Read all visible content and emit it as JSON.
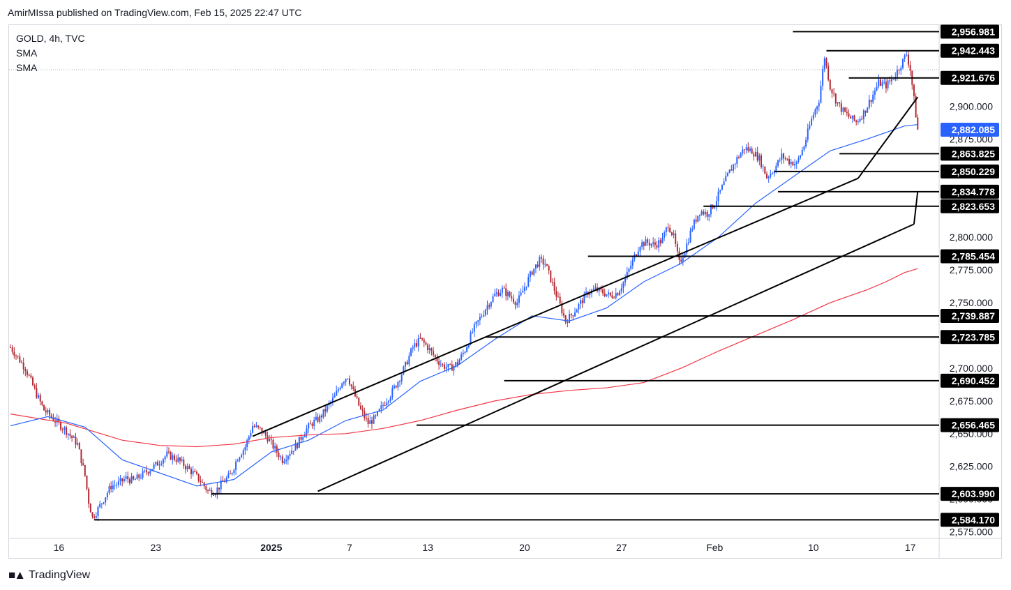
{
  "header": {
    "published_text": "AmirMIssa published on TradingView.com, Feb 15, 2025 22:47 UTC"
  },
  "legend": {
    "symbol": "GOLD, 4h, TVC",
    "indicators": [
      "SMA",
      "SMA"
    ]
  },
  "footer": {
    "brand": "TradingView"
  },
  "colors": {
    "up_candle": "#2962ff",
    "down_candle": "#b22833",
    "sma_fast": "#2962ff",
    "sma_slow": "#f23645",
    "level_label_bg": "#000000",
    "last_price_bg": "#2962ff",
    "trendlines": "#000000"
  },
  "chart_data": {
    "type": "candlestick",
    "symbol": "GOLD",
    "timeframe": "4h",
    "x_tick_labels": [
      "16",
      "23",
      "2025",
      "7",
      "13",
      "20",
      "27",
      "Feb",
      "10",
      "17"
    ],
    "y_tick_labels": [
      "2,900.000",
      "2,875.000",
      "2,850.000",
      "2,825.000",
      "2,800.000",
      "2,775.000",
      "2,750.000",
      "2,725.000",
      "2,700.000",
      "2,675.000",
      "2,650.000",
      "2,625.000",
      "2,600.000",
      "2,575.000"
    ],
    "ylim": [
      2570,
      2962
    ],
    "last_price": "2,882.085",
    "horizontal_levels": [
      "2,956.981",
      "2,942.443",
      "2,921.676",
      "2,863.825",
      "2,850.229",
      "2,834.778",
      "2,823.653",
      "2,785.454",
      "2,739.887",
      "2,723.785",
      "2,690.452",
      "2,656.465",
      "2,603.990",
      "2,584.170"
    ],
    "close_path": [
      [
        0,
        2716
      ],
      [
        8,
        2700
      ],
      [
        14,
        2680
      ],
      [
        18,
        2668
      ],
      [
        24,
        2660
      ],
      [
        30,
        2652
      ],
      [
        36,
        2642
      ],
      [
        40,
        2618
      ],
      [
        42,
        2598
      ],
      [
        44,
        2586
      ],
      [
        46,
        2590
      ],
      [
        50,
        2600
      ],
      [
        54,
        2610
      ],
      [
        58,
        2612
      ],
      [
        62,
        2616
      ],
      [
        66,
        2614
      ],
      [
        72,
        2620
      ],
      [
        78,
        2626
      ],
      [
        84,
        2634
      ],
      [
        90,
        2630
      ],
      [
        94,
        2625
      ],
      [
        98,
        2620
      ],
      [
        102,
        2614
      ],
      [
        106,
        2606
      ],
      [
        110,
        2606
      ],
      [
        114,
        2613
      ],
      [
        118,
        2618
      ],
      [
        122,
        2632
      ],
      [
        126,
        2640
      ],
      [
        130,
        2656
      ],
      [
        134,
        2653
      ],
      [
        138,
        2647
      ],
      [
        142,
        2638
      ],
      [
        146,
        2630
      ],
      [
        150,
        2636
      ],
      [
        154,
        2642
      ],
      [
        158,
        2652
      ],
      [
        162,
        2658
      ],
      [
        166,
        2662
      ],
      [
        170,
        2670
      ],
      [
        174,
        2678
      ],
      [
        178,
        2690
      ],
      [
        181,
        2694
      ],
      [
        184,
        2682
      ],
      [
        188,
        2668
      ],
      [
        192,
        2658
      ],
      [
        196,
        2662
      ],
      [
        200,
        2672
      ],
      [
        204,
        2680
      ],
      [
        208,
        2690
      ],
      [
        212,
        2702
      ],
      [
        216,
        2716
      ],
      [
        220,
        2722
      ],
      [
        224,
        2716
      ],
      [
        228,
        2708
      ],
      [
        232,
        2702
      ],
      [
        236,
        2700
      ],
      [
        240,
        2704
      ],
      [
        244,
        2714
      ],
      [
        248,
        2728
      ],
      [
        252,
        2738
      ],
      [
        256,
        2748
      ],
      [
        260,
        2756
      ],
      [
        264,
        2760
      ],
      [
        268,
        2755
      ],
      [
        272,
        2750
      ],
      [
        276,
        2762
      ],
      [
        280,
        2774
      ],
      [
        284,
        2782
      ],
      [
        287,
        2780
      ],
      [
        290,
        2768
      ],
      [
        294,
        2752
      ],
      [
        298,
        2736
      ],
      [
        302,
        2742
      ],
      [
        306,
        2750
      ],
      [
        310,
        2758
      ],
      [
        314,
        2760
      ],
      [
        318,
        2758
      ],
      [
        322,
        2755
      ],
      [
        326,
        2758
      ],
      [
        330,
        2768
      ],
      [
        334,
        2782
      ],
      [
        338,
        2795
      ],
      [
        342,
        2796
      ],
      [
        346,
        2794
      ],
      [
        350,
        2798
      ],
      [
        353,
        2810
      ],
      [
        356,
        2800
      ],
      [
        359,
        2780
      ],
      [
        362,
        2790
      ],
      [
        366,
        2808
      ],
      [
        370,
        2820
      ],
      [
        374,
        2818
      ],
      [
        378,
        2826
      ],
      [
        382,
        2838
      ],
      [
        386,
        2850
      ],
      [
        390,
        2860
      ],
      [
        394,
        2868
      ],
      [
        398,
        2866
      ],
      [
        402,
        2860
      ],
      [
        406,
        2846
      ],
      [
        410,
        2852
      ],
      [
        414,
        2862
      ],
      [
        418,
        2858
      ],
      [
        422,
        2856
      ],
      [
        426,
        2870
      ],
      [
        430,
        2890
      ],
      [
        434,
        2905
      ],
      [
        437,
        2938
      ],
      [
        440,
        2915
      ],
      [
        443,
        2905
      ],
      [
        446,
        2898
      ],
      [
        450,
        2892
      ],
      [
        454,
        2888
      ],
      [
        458,
        2895
      ],
      [
        462,
        2906
      ],
      [
        466,
        2918
      ],
      [
        470,
        2916
      ],
      [
        474,
        2922
      ],
      [
        478,
        2932
      ],
      [
        481,
        2940
      ],
      [
        483,
        2928
      ],
      [
        485,
        2905
      ],
      [
        487,
        2882
      ]
    ],
    "candle_count": 488,
    "sma_fast_path": [
      [
        0,
        2656
      ],
      [
        20,
        2663
      ],
      [
        40,
        2655
      ],
      [
        60,
        2630
      ],
      [
        80,
        2620
      ],
      [
        100,
        2610
      ],
      [
        120,
        2615
      ],
      [
        140,
        2636
      ],
      [
        160,
        2645
      ],
      [
        180,
        2660
      ],
      [
        200,
        2668
      ],
      [
        220,
        2690
      ],
      [
        240,
        2702
      ],
      [
        260,
        2722
      ],
      [
        280,
        2740
      ],
      [
        300,
        2736
      ],
      [
        320,
        2746
      ],
      [
        340,
        2766
      ],
      [
        360,
        2780
      ],
      [
        380,
        2800
      ],
      [
        400,
        2826
      ],
      [
        420,
        2846
      ],
      [
        440,
        2866
      ],
      [
        460,
        2875
      ],
      [
        480,
        2885
      ],
      [
        487,
        2886
      ]
    ],
    "sma_slow_path": [
      [
        0,
        2665
      ],
      [
        30,
        2658
      ],
      [
        60,
        2645
      ],
      [
        80,
        2641
      ],
      [
        100,
        2640
      ],
      [
        120,
        2642
      ],
      [
        140,
        2647
      ],
      [
        160,
        2649
      ],
      [
        180,
        2650
      ],
      [
        200,
        2654
      ],
      [
        220,
        2660
      ],
      [
        240,
        2668
      ],
      [
        260,
        2675
      ],
      [
        280,
        2680
      ],
      [
        300,
        2683
      ],
      [
        320,
        2685
      ],
      [
        340,
        2689
      ],
      [
        360,
        2700
      ],
      [
        380,
        2713
      ],
      [
        400,
        2725
      ],
      [
        420,
        2737
      ],
      [
        440,
        2750
      ],
      [
        460,
        2760
      ],
      [
        470,
        2766
      ],
      [
        480,
        2773
      ],
      [
        487,
        2776
      ]
    ],
    "trendlines": [
      {
        "from": [
          130,
          2648
        ],
        "to": [
          455,
          2845
        ]
      },
      {
        "from": [
          165,
          2606
        ],
        "to": [
          485,
          2810
        ]
      }
    ],
    "trendline_extensions": [
      {
        "from": [
          455,
          2845
        ],
        "to": [
          487,
          2907
        ]
      },
      {
        "from": [
          485,
          2810
        ],
        "to": [
          487,
          2835
        ]
      }
    ]
  }
}
